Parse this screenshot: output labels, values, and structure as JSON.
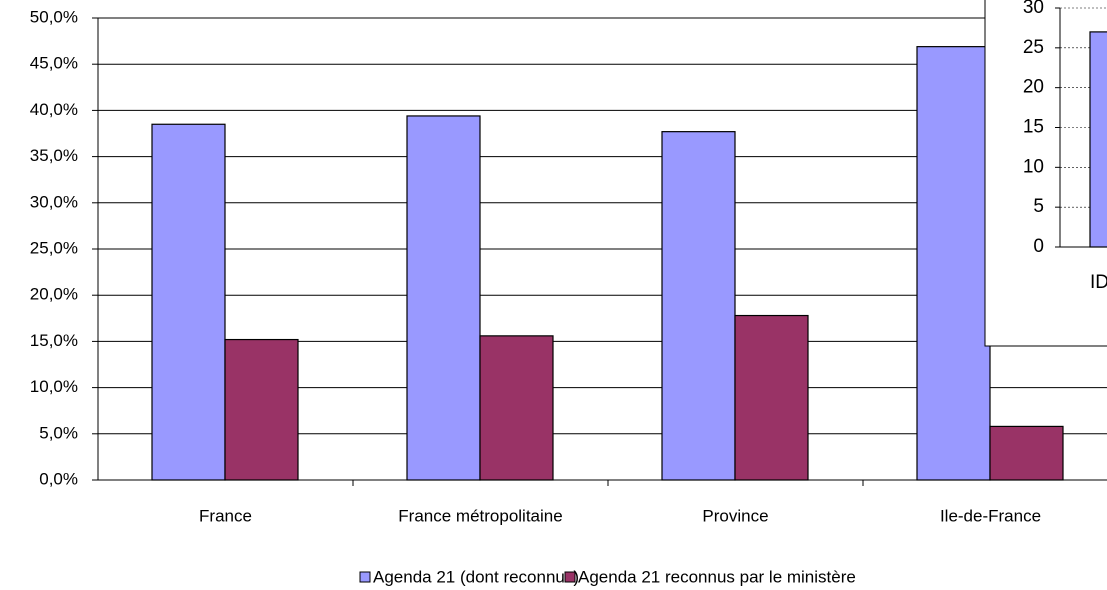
{
  "chart_data": [
    {
      "type": "bar",
      "categories": [
        "France",
        "France métropolitaine",
        "Province",
        "Ile-de-France"
      ],
      "series": [
        {
          "name": "Agenda 21 (dont reconnus)",
          "color": "#9999ff",
          "values": [
            38.5,
            39.4,
            37.7,
            46.9
          ]
        },
        {
          "name": "Agenda 21 reconnus par le ministère",
          "color": "#993366",
          "values": [
            15.2,
            15.6,
            17.8,
            5.8
          ]
        }
      ],
      "ylim": [
        0,
        50
      ],
      "yticks": [
        {
          "value": 0,
          "label": "0,0%"
        },
        {
          "value": 5,
          "label": "5,0%"
        },
        {
          "value": 10,
          "label": "10,0%"
        },
        {
          "value": 15,
          "label": "15,0%"
        },
        {
          "value": 20,
          "label": "20,0%"
        },
        {
          "value": 25,
          "label": "25,0%"
        },
        {
          "value": 30,
          "label": "30,0%"
        },
        {
          "value": 35,
          "label": "35,0%"
        },
        {
          "value": 40,
          "label": "40,0%"
        },
        {
          "value": 45,
          "label": "45,0%"
        },
        {
          "value": 50,
          "label": "50,0%"
        }
      ],
      "grid": true,
      "legend": "bottom"
    },
    {
      "type": "bar",
      "categories": [
        "IDF"
      ],
      "values": [
        27
      ],
      "color": "#9999ff",
      "ylim": [
        0,
        30
      ],
      "yticks": [
        0,
        5,
        10,
        15,
        20,
        25,
        30
      ],
      "grid": true
    }
  ]
}
